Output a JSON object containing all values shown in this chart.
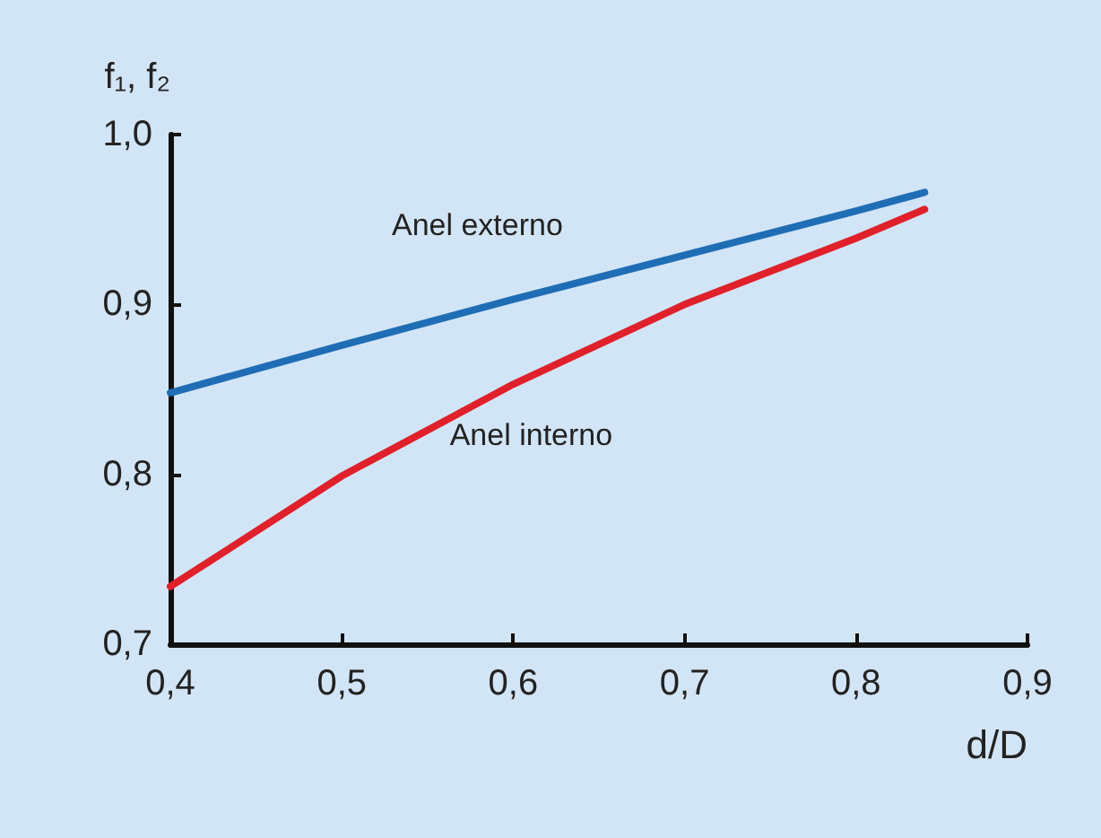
{
  "chart_data": {
    "type": "line",
    "xlabel": "d/D",
    "ylabel": "f₁, f₂",
    "x": [
      0.4,
      0.5,
      0.6,
      0.7,
      0.8,
      0.84
    ],
    "series": [
      {
        "name": "Anel externo",
        "color": "#1f6db5",
        "values": [
          0.848,
          0.876,
          0.903,
          0.929,
          0.955,
          0.966
        ]
      },
      {
        "name": "Anel interno",
        "color": "#e0202a",
        "values": [
          0.734,
          0.799,
          0.853,
          0.9,
          0.939,
          0.956
        ]
      }
    ],
    "xlim": [
      0.4,
      0.9
    ],
    "ylim": [
      0.7,
      1.0
    ],
    "xticks": [
      {
        "value": 0.4,
        "label": "0,4"
      },
      {
        "value": 0.5,
        "label": "0,5"
      },
      {
        "value": 0.6,
        "label": "0,6"
      },
      {
        "value": 0.7,
        "label": "0,7"
      },
      {
        "value": 0.8,
        "label": "0,8"
      },
      {
        "value": 0.9,
        "label": "0,9"
      }
    ],
    "yticks": [
      {
        "value": 0.7,
        "label": "0,7"
      },
      {
        "value": 0.8,
        "label": "0,8"
      },
      {
        "value": 0.9,
        "label": "0,9"
      },
      {
        "value": 1.0,
        "label": "1,0"
      }
    ],
    "grid": false,
    "legend": false,
    "marker": "none",
    "line_style": "solid"
  }
}
